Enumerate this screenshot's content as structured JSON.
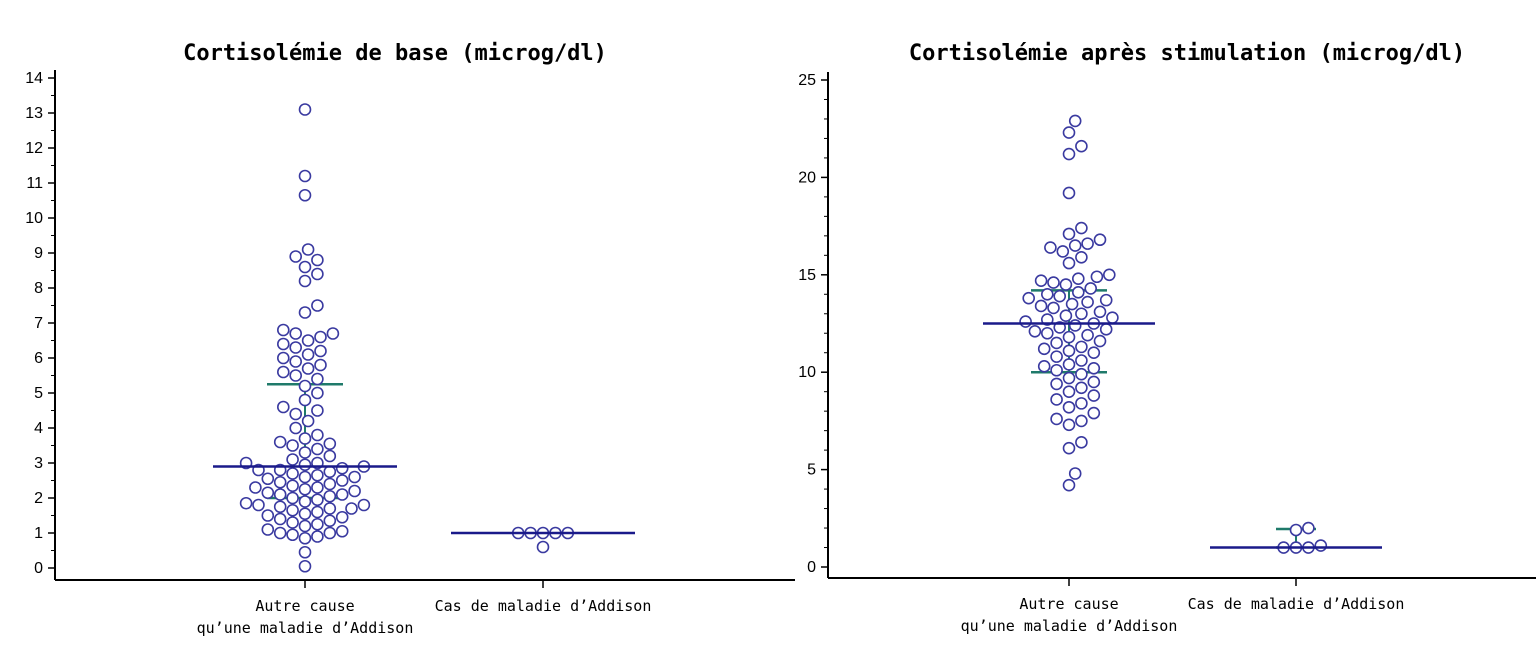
{
  "colors": {
    "point_stroke": "#3a3aa0",
    "median_line": "#1a1a8a",
    "iqr_line": "#1f7a6a",
    "axis": "#000000"
  },
  "chart_data": [
    {
      "type": "scatter",
      "title": "Cortisolémie de base (microg/dl)",
      "ylim": [
        0,
        14
      ],
      "yticks": [
        "0",
        "1",
        "2",
        "3",
        "4",
        "5",
        "6",
        "7",
        "8",
        "9",
        "10",
        "11",
        "12",
        "13",
        "14"
      ],
      "categories": [
        {
          "label_lines": [
            "Autre cause",
            "qu’une maladie d’Addison"
          ]
        },
        {
          "label_lines": [
            "Cas de maladie d’Addison"
          ]
        }
      ],
      "groups": [
        {
          "median": 2.9,
          "q1": 2.0,
          "q3": 5.25,
          "values": [
            0.05,
            0.45,
            0.85,
            0.9,
            0.95,
            1.0,
            1.0,
            1.05,
            1.1,
            1.2,
            1.25,
            1.3,
            1.35,
            1.4,
            1.45,
            1.5,
            1.55,
            1.6,
            1.65,
            1.7,
            1.7,
            1.75,
            1.8,
            1.8,
            1.85,
            1.9,
            1.95,
            2.0,
            2.05,
            2.1,
            2.1,
            2.15,
            2.2,
            2.25,
            2.3,
            2.3,
            2.35,
            2.4,
            2.45,
            2.5,
            2.55,
            2.6,
            2.6,
            2.65,
            2.7,
            2.75,
            2.8,
            2.8,
            2.85,
            2.9,
            2.95,
            3.0,
            3.0,
            3.1,
            3.2,
            3.3,
            3.4,
            3.5,
            3.55,
            3.6,
            3.7,
            3.8,
            4.0,
            4.2,
            4.4,
            4.5,
            4.6,
            4.8,
            5.0,
            5.2,
            5.4,
            5.5,
            5.6,
            5.7,
            5.8,
            5.9,
            6.0,
            6.1,
            6.2,
            6.3,
            6.4,
            6.5,
            6.6,
            6.7,
            6.7,
            6.8,
            7.3,
            7.5,
            8.2,
            8.4,
            8.6,
            8.8,
            8.9,
            9.1,
            10.65,
            11.2,
            13.1
          ]
        },
        {
          "median": 1.0,
          "q1": 1.0,
          "q3": 1.0,
          "values": [
            0.6,
            1.0,
            1.0,
            1.0,
            1.0,
            1.0
          ]
        }
      ]
    },
    {
      "type": "scatter",
      "title": "Cortisolémie après stimulation (microg/dl)",
      "ylim": [
        0,
        25
      ],
      "yticks": [
        "0",
        "5",
        "10",
        "15",
        "20",
        "25"
      ],
      "categories": [
        {
          "label_lines": [
            "Autre cause",
            "qu’une maladie d’Addison"
          ]
        },
        {
          "label_lines": [
            "Cas de maladie d’Addison"
          ]
        }
      ],
      "groups": [
        {
          "median": 12.5,
          "q1": 10.0,
          "q3": 14.2,
          "values": [
            4.2,
            4.8,
            6.1,
            6.4,
            7.3,
            7.5,
            7.6,
            7.9,
            8.2,
            8.4,
            8.6,
            8.8,
            9.0,
            9.2,
            9.4,
            9.5,
            9.7,
            9.9,
            10.1,
            10.2,
            10.3,
            10.4,
            10.6,
            10.8,
            11.0,
            11.1,
            11.2,
            11.3,
            11.5,
            11.6,
            11.8,
            11.9,
            12.0,
            12.1,
            12.2,
            12.3,
            12.4,
            12.5,
            12.6,
            12.7,
            12.8,
            12.9,
            13.0,
            13.1,
            13.3,
            13.4,
            13.5,
            13.6,
            13.7,
            13.8,
            13.9,
            14.0,
            14.1,
            14.3,
            14.5,
            14.6,
            14.7,
            14.8,
            14.9,
            15.0,
            15.6,
            15.9,
            16.2,
            16.4,
            16.5,
            16.6,
            16.8,
            17.1,
            17.4,
            19.2,
            21.2,
            21.6,
            22.3,
            22.9
          ]
        },
        {
          "median": 1.0,
          "q1": 1.0,
          "q3": 1.95,
          "values": [
            1.0,
            1.0,
            1.0,
            1.1,
            1.9,
            2.0
          ]
        }
      ]
    }
  ]
}
